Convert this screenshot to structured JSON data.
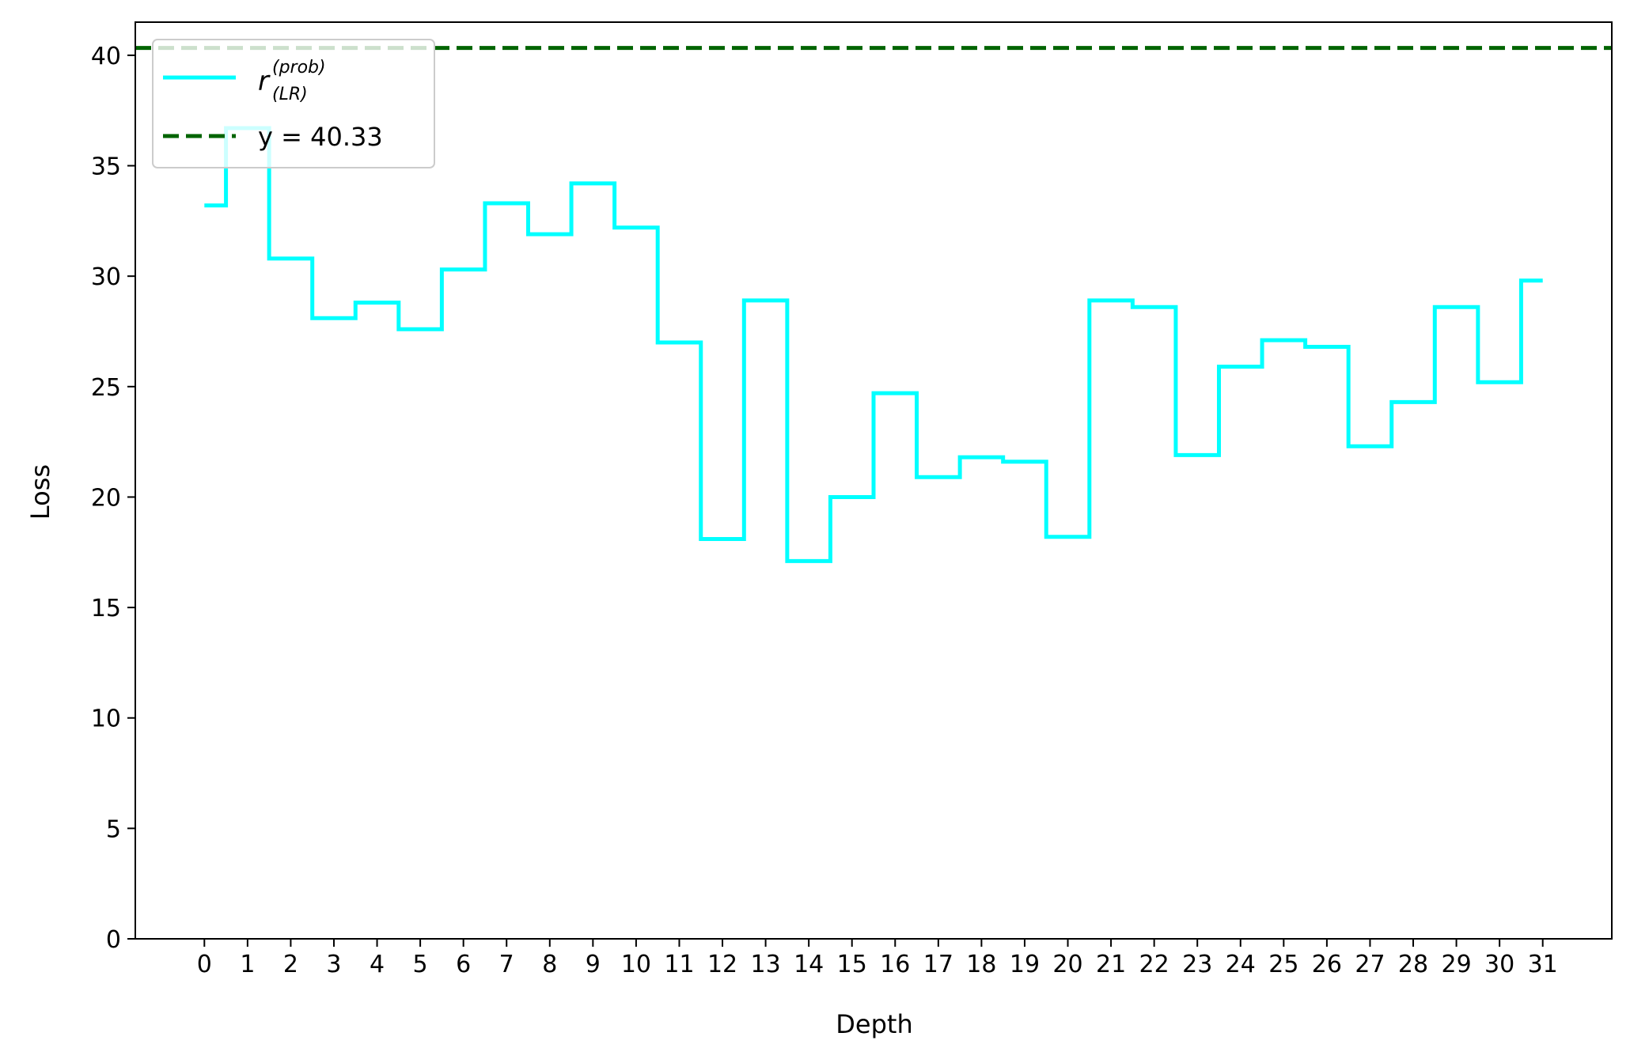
{
  "chart_data": {
    "type": "line",
    "drawstyle": "steps-mid",
    "xlabel": "Depth",
    "ylabel": "Loss",
    "x": [
      0,
      1,
      2,
      3,
      4,
      5,
      6,
      7,
      8,
      9,
      10,
      11,
      12,
      13,
      14,
      15,
      16,
      17,
      18,
      19,
      20,
      21,
      22,
      23,
      24,
      25,
      26,
      27,
      28,
      29,
      30,
      31
    ],
    "x_tick_labels": [
      "0",
      "1",
      "2",
      "3",
      "4",
      "5",
      "6",
      "7",
      "8",
      "9",
      "10",
      "11",
      "12",
      "13",
      "14",
      "15",
      "16",
      "17",
      "18",
      "19",
      "20",
      "21",
      "22",
      "23",
      "24",
      "25",
      "26",
      "27",
      "28",
      "29",
      "30",
      "31"
    ],
    "yticks": [
      0,
      5,
      10,
      15,
      20,
      25,
      30,
      35,
      40
    ],
    "y_tick_labels": [
      "0",
      "5",
      "10",
      "15",
      "20",
      "25",
      "30",
      "35",
      "40"
    ],
    "ylim": [
      0,
      41.5
    ],
    "xlim": [
      -1.6,
      32.6
    ],
    "grid": false,
    "legend_position": "top-left",
    "series": [
      {
        "name_base": "r",
        "name_sup": "(prob)",
        "name_sub": "(LR)",
        "color": "#00ffff",
        "values": [
          33.2,
          36.7,
          30.8,
          28.1,
          28.8,
          27.6,
          30.3,
          33.3,
          31.9,
          34.2,
          32.2,
          27.0,
          18.1,
          28.9,
          17.1,
          20.0,
          24.7,
          20.9,
          21.8,
          21.6,
          18.2,
          28.9,
          28.6,
          21.9,
          25.9,
          27.1,
          26.8,
          22.3,
          24.3,
          28.6,
          25.2,
          29.8
        ]
      }
    ],
    "reference_line": {
      "label": "y = 40.33",
      "y": 40.33,
      "color": "#006400",
      "style": "dashed"
    }
  }
}
